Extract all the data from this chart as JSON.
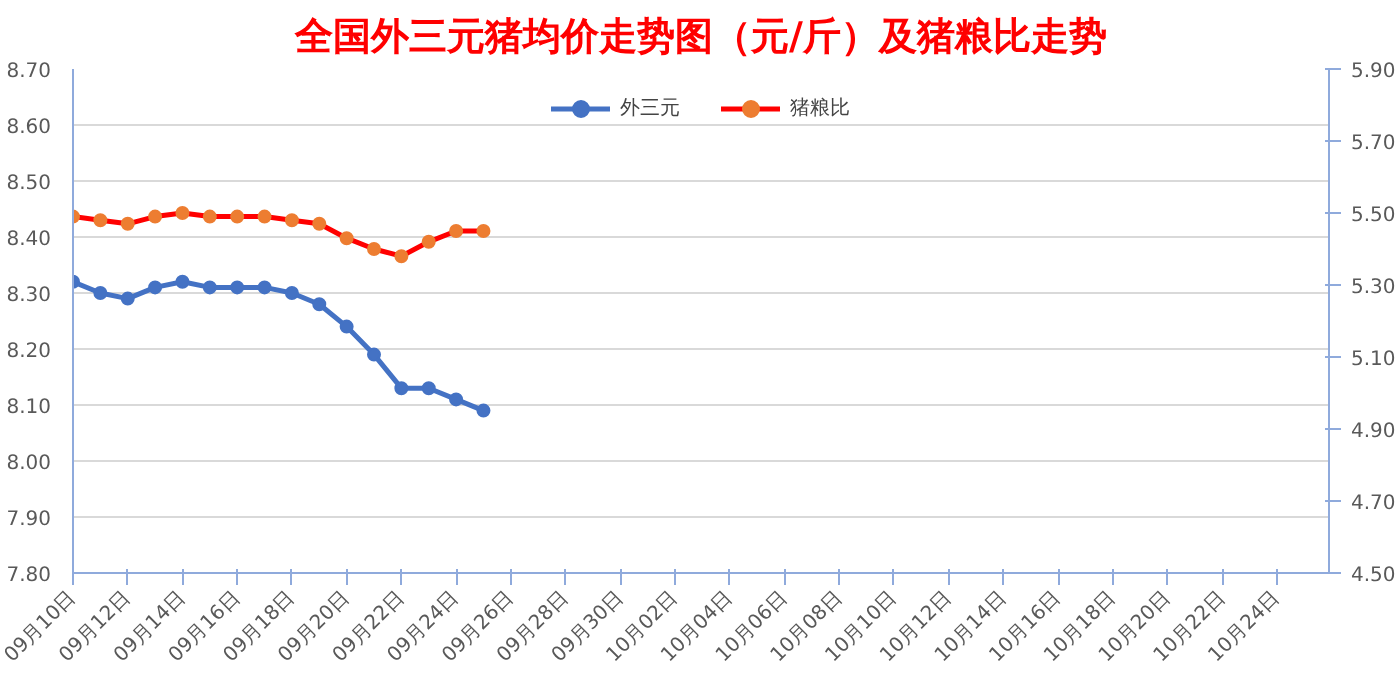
{
  "chart_data": {
    "type": "line",
    "title": "全国外三元猪均价走势图（元/斤）及猪粮比走势",
    "categories": [
      "09月10日",
      null,
      "09月12日",
      null,
      "09月14日",
      null,
      "09月16日",
      null,
      "09月18日",
      null,
      "09月20日",
      null,
      "09月22日",
      null,
      "09月24日",
      null,
      "09月26日",
      null,
      "09月28日",
      null,
      "09月30日",
      null,
      "10月02日",
      null,
      "10月04日",
      null,
      "10月06日",
      null,
      "10月08日",
      null,
      "10月10日",
      null,
      "10月12日",
      null,
      "10月14日",
      null,
      "10月16日",
      null,
      "10月18日",
      null,
      "10月20日",
      null,
      "10月22日",
      null,
      "10月24日",
      null
    ],
    "series": [
      {
        "name": "外三元",
        "color": "#4472c4",
        "values": [
          8.32,
          8.3,
          8.29,
          8.31,
          8.32,
          8.31,
          8.31,
          8.31,
          8.3,
          8.28,
          8.24,
          8.19,
          8.13,
          8.13,
          8.11,
          8.09,
          null,
          null,
          null,
          null,
          null,
          null,
          null,
          null,
          null,
          null,
          null,
          null,
          null,
          null,
          null,
          null,
          null,
          null,
          null,
          null,
          null,
          null,
          null,
          null,
          null,
          null,
          null,
          null,
          null,
          null
        ]
      },
      {
        "name": "猪粮比",
        "color": "#ff0000",
        "axis": "y2",
        "colors": [
          "#ed7d31",
          "#ed7d31",
          "#ed7d31",
          "#ed7d31",
          "#ed7d31",
          "#ed7d31",
          "#ed7d31",
          "#ed7d31",
          "#ed7d31",
          "#ed7d31",
          "#ed7d31",
          "#ed7d31",
          "#ed7d31",
          "#ed7d31",
          "#ed7d31",
          "#ed7d31",
          "#ed7d31",
          "#ed7d31",
          "#ed7d31",
          "#ed7d31",
          "#ed7d31",
          "#ed7d31",
          "#ed7d31",
          "#ed7d31",
          "#ed7d31",
          "#ed7d31",
          "#ed7d31",
          "#ed7d31",
          "#ed7d31",
          "#ed7d31",
          "#ed7d31",
          "#ed7d31",
          "#ed7d31",
          "#ed7d31",
          "#ed7d31",
          "#ed7d31",
          "#ed7d31",
          "#ed7d31",
          "#ed7d31",
          "#ed7d31",
          "#ed7d31",
          "#ed7d31",
          "#ed7d31",
          "#ed7d31",
          "#ed7d31",
          "#ed7d31"
        ],
        "values": [
          5.49,
          5.48,
          5.47,
          5.49,
          5.5,
          5.49,
          5.49,
          5.49,
          5.48,
          5.47,
          5.43,
          5.4,
          5.38,
          5.42,
          5.45,
          5.45,
          null,
          null,
          null,
          null,
          null,
          null,
          null,
          null,
          null,
          null,
          null,
          null,
          null,
          null,
          null,
          null,
          null,
          null,
          null,
          null,
          null,
          null,
          null,
          null,
          null,
          null,
          null,
          null,
          null,
          null
        ]
      }
    ],
    "ylim": [
      7.8,
      8.7
    ],
    "yticks": [
      {
        "value": 7.8,
        "label": "7.80"
      },
      {
        "value": 7.9,
        "label": "7.90"
      },
      {
        "value": 8.0,
        "label": "8.00"
      },
      {
        "value": 8.1,
        "label": "8.10"
      },
      {
        "value": 8.2,
        "label": "8.20"
      },
      {
        "value": 8.3,
        "label": "8.30"
      },
      {
        "value": 8.4,
        "label": "8.40"
      },
      {
        "value": 8.5,
        "label": "8.50"
      },
      {
        "value": 8.6,
        "label": "8.60"
      },
      {
        "value": 8.7,
        "label": "8.70"
      }
    ],
    "y2lim": [
      4.5,
      5.9
    ],
    "y2ticks": [
      {
        "value": 4.5,
        "label": "4.50"
      },
      {
        "value": 4.7,
        "label": "4.70"
      },
      {
        "value": 4.9,
        "label": "4.90"
      },
      {
        "value": 5.1,
        "label": "5.10"
      },
      {
        "value": 5.3,
        "label": "5.30"
      },
      {
        "value": 5.5,
        "label": "5.50"
      },
      {
        "value": 5.7,
        "label": "5.70"
      },
      {
        "value": 5.9,
        "label": "5.90"
      }
    ],
    "grid": "y",
    "legend": "top",
    "marker": "circle",
    "line_style": "solid"
  }
}
